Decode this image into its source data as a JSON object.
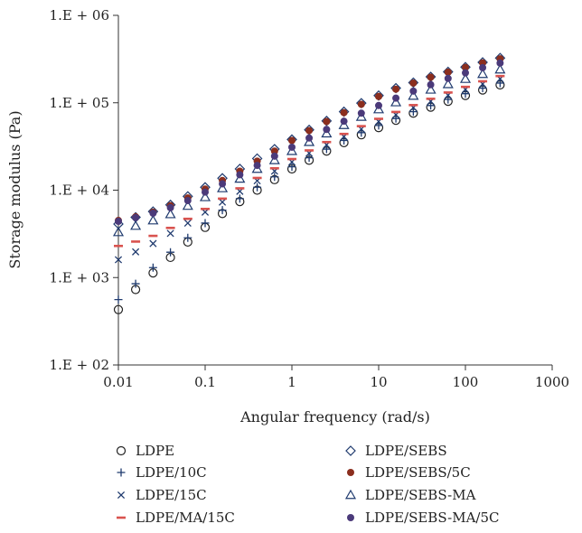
{
  "chart_data": {
    "type": "scatter",
    "title": "",
    "xlabel": "Angular frequency (rad/s)",
    "ylabel": "Storage modulus (Pa)",
    "x_scale": "log",
    "y_scale": "log",
    "xlim": [
      0.01,
      1000
    ],
    "ylim": [
      100,
      1000000
    ],
    "grid": false,
    "legend_position": "bottom",
    "x_ticks": [
      {
        "value": 0.01,
        "label": "0.01"
      },
      {
        "value": 0.1,
        "label": "0.1"
      },
      {
        "value": 1,
        "label": "1"
      },
      {
        "value": 10,
        "label": "10"
      },
      {
        "value": 100,
        "label": "100"
      },
      {
        "value": 1000,
        "label": "1000"
      }
    ],
    "y_ticks": [
      {
        "value": 100,
        "label": "1.E + 02"
      },
      {
        "value": 1000,
        "label": "1.E + 03"
      },
      {
        "value": 10000,
        "label": "1.E + 04"
      },
      {
        "value": 100000,
        "label": "1.E + 05"
      },
      {
        "value": 1000000,
        "label": "1.E + 06"
      }
    ],
    "x": [
      0.01,
      0.0158,
      0.0251,
      0.0398,
      0.0631,
      0.1,
      0.158,
      0.251,
      0.398,
      0.631,
      1,
      1.58,
      2.51,
      3.98,
      6.31,
      10,
      15.8,
      25.1,
      39.8,
      63.1,
      100,
      158,
      251
    ],
    "series": [
      {
        "name": "LDPE",
        "marker": "circle",
        "color": "#222222",
        "values": [
          430,
          730,
          1130,
          1700,
          2550,
          3750,
          5400,
          7400,
          10000,
          13200,
          17500,
          22000,
          28000,
          35000,
          43000,
          52000,
          63000,
          76000,
          89000,
          104000,
          121000,
          140000,
          160000
        ]
      },
      {
        "name": "LDPE/10C",
        "marker": "plus",
        "color": "#1f3a6e",
        "values": [
          560,
          850,
          1300,
          1950,
          2850,
          4200,
          5900,
          8000,
          10800,
          14200,
          18500,
          23500,
          29500,
          37000,
          45500,
          55000,
          66000,
          79000,
          93000,
          109000,
          127000,
          147000,
          168000
        ]
      },
      {
        "name": "LDPE/15C",
        "marker": "cross",
        "color": "#1f3a6e",
        "values": [
          1600,
          1970,
          2450,
          3200,
          4200,
          5600,
          7300,
          9700,
          12800,
          16500,
          21000,
          26500,
          33000,
          41000,
          50000,
          61000,
          73000,
          88000,
          104000,
          122000,
          142000,
          164000,
          188000
        ]
      },
      {
        "name": "LDPE/MA/15C",
        "marker": "dash",
        "color": "#d9534f",
        "values": [
          2300,
          2580,
          3000,
          3700,
          4700,
          6100,
          8000,
          10500,
          13800,
          17800,
          22700,
          28500,
          35500,
          44000,
          54000,
          65500,
          78500,
          94000,
          111000,
          131000,
          152000,
          176000,
          202000
        ]
      },
      {
        "name": "LDPE/SEBS",
        "marker": "diamond",
        "color": "#1f3a6e",
        "values": [
          4100,
          4900,
          5700,
          6800,
          8500,
          10800,
          13700,
          17500,
          23000,
          29500,
          38000,
          49000,
          62000,
          79000,
          99000,
          121000,
          147000,
          170000,
          198000,
          226000,
          256000,
          290000,
          325000
        ]
      },
      {
        "name": "LDPE/SEBS/5C",
        "marker": "dot",
        "color": "#8b2e1e",
        "values": [
          4500,
          4950,
          5600,
          6650,
          8150,
          10300,
          12900,
          16500,
          21500,
          28000,
          37000,
          48000,
          61000,
          77000,
          96000,
          118000,
          143000,
          168000,
          196000,
          224000,
          254000,
          286000,
          318000
        ]
      },
      {
        "name": "LDPE/SEBS-MA",
        "marker": "triangle",
        "color": "#1f3a6e",
        "values": [
          3300,
          3900,
          4500,
          5300,
          6600,
          8300,
          10500,
          13500,
          17500,
          22000,
          28000,
          35500,
          44500,
          55500,
          69000,
          84000,
          101000,
          120000,
          141000,
          163000,
          187000,
          213000,
          240000
        ]
      },
      {
        "name": "LDPE/SEBS-MA/5C",
        "marker": "dot",
        "color": "#4b3a7a",
        "values": [
          4400,
          4850,
          5450,
          6300,
          7600,
          9500,
          11800,
          15000,
          19200,
          24500,
          31000,
          39500,
          49500,
          61500,
          76000,
          93000,
          113000,
          136000,
          161000,
          190000,
          220000,
          252000,
          285000
        ]
      }
    ]
  }
}
